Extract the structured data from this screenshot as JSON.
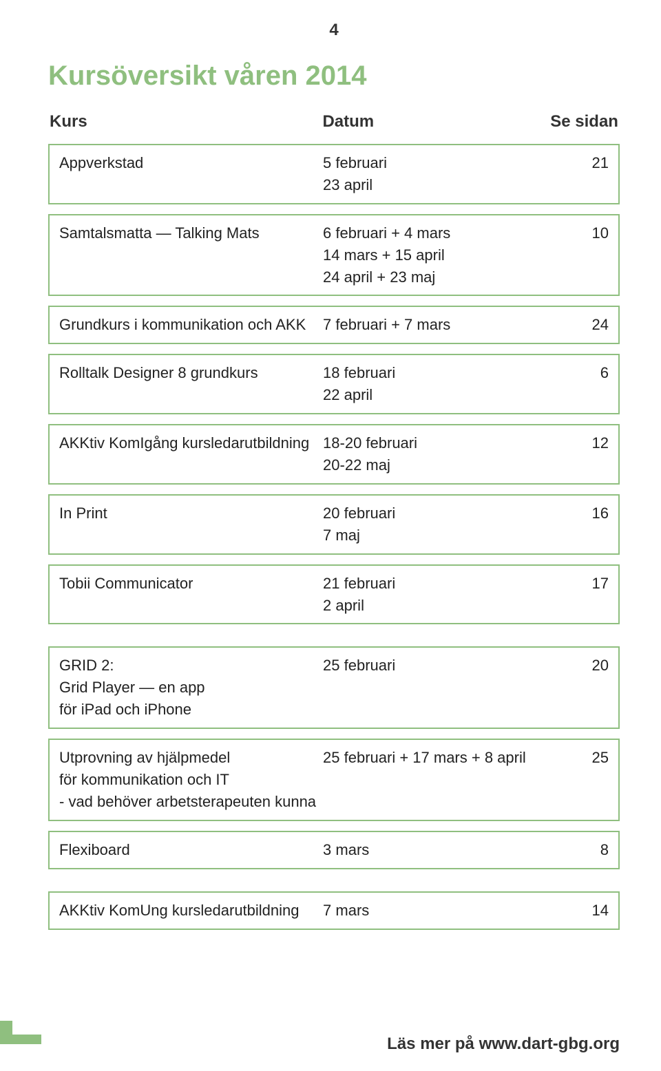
{
  "page_number": "4",
  "title": "Kursöversikt våren 2014",
  "title_color": "#8fbf7f",
  "border_color": "#8fbf7f",
  "footer_bar_color": "#8fbf7f",
  "text_color": "#333333",
  "header": {
    "kurs": "Kurs",
    "datum": "Datum",
    "sidan": "Se sidan"
  },
  "rows": [
    {
      "kurs": "Appverkstad",
      "datum": "5 februari\n23 april",
      "sidan": "21"
    },
    {
      "kurs": "Samtalsmatta — Talking Mats",
      "datum": "6 februari + 4 mars\n14 mars + 15 april\n24 april + 23 maj",
      "sidan": "10"
    },
    {
      "kurs": "Grundkurs i kommunikation och AKK",
      "datum": "7 februari + 7 mars",
      "sidan": "24"
    },
    {
      "kurs": "Rolltalk Designer 8 grundkurs",
      "datum": "18 februari\n22 april",
      "sidan": "6"
    },
    {
      "kurs": "AKKtiv KomIgång kursledarutbildning",
      "datum": "18-20 februari\n20-22 maj",
      "sidan": "12"
    },
    {
      "kurs": "In Print",
      "datum": "20 februari\n7 maj",
      "sidan": "16"
    },
    {
      "kurs": "Tobii Communicator",
      "datum": "21 februari\n2 april",
      "sidan": "17"
    },
    {
      "gap": true
    },
    {
      "kurs": "GRID 2:\nGrid Player — en app\nför iPad och iPhone",
      "datum": "25 februari",
      "sidan": "20"
    },
    {
      "kurs": "Utprovning av hjälpmedel\nför kommunikation och IT\n- vad behöver arbetsterapeuten kunna",
      "datum": "25 februari + 17 mars + 8 april",
      "sidan": "25"
    },
    {
      "kurs": "Flexiboard",
      "datum": "3 mars",
      "sidan": "8"
    },
    {
      "gap": true
    },
    {
      "kurs": "AKKtiv KomUng kursledarutbildning",
      "datum": "7 mars",
      "sidan": "14"
    }
  ],
  "footer_text": "Läs mer på www.dart-gbg.org"
}
